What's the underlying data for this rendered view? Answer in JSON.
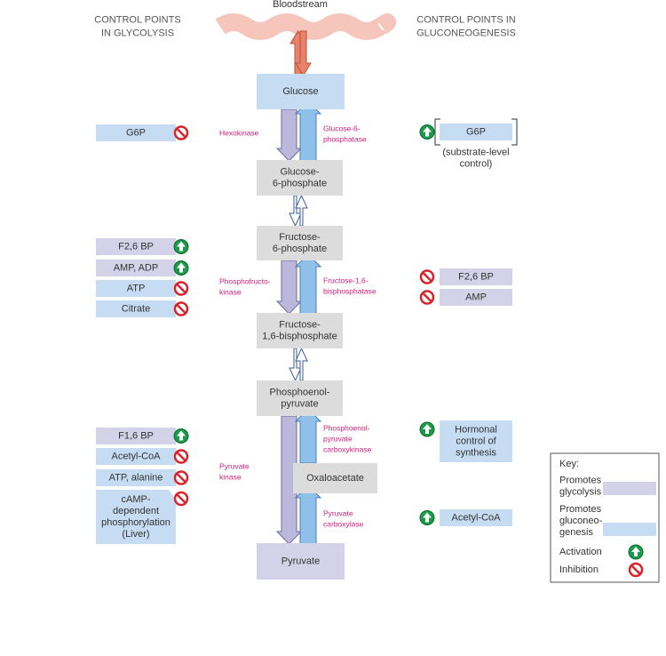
{
  "header": {
    "bloodstream": "Bloodstream",
    "glycolysis_title": [
      "CONTROL POINTS",
      "IN GLYCOLYSIS"
    ],
    "gluconeogenesis_title": [
      "CONTROL POINTS IN",
      "GLUCONEOGENESIS"
    ]
  },
  "metabolites": [
    [
      "Glucose"
    ],
    [
      "Glucose-",
      "6-phosphate"
    ],
    [
      "Fructose-",
      "6-phosphate"
    ],
    [
      "Fructose-",
      "1,6-bisphosphate"
    ],
    [
      "Phosphoenol-",
      "pyruvate"
    ],
    [
      "Oxaloacetate"
    ],
    [
      "Pyruvate"
    ]
  ],
  "glycolysis_enzymes": [
    [
      "Hexokinase"
    ],
    [
      "Phosphofructo-",
      "kinase"
    ],
    [
      "Pyruvate",
      "kinase"
    ]
  ],
  "gluconeogenesis_enzymes": [
    [
      "Glucose-6-",
      "phosphatase"
    ],
    [
      "Fructose-1,6-",
      "bisphosphatase"
    ],
    [
      "Phosphoenol-",
      "pyruvate",
      "carboxykinase"
    ],
    [
      "Pyruvate",
      "carboxylase"
    ]
  ],
  "glycolysis_controls": [
    {
      "label": [
        "G6P"
      ],
      "effect": "inhibition"
    },
    {
      "label": [
        "F2,6 BP"
      ],
      "effect": "activation"
    },
    {
      "label": [
        "AMP, ADP"
      ],
      "effect": "activation"
    },
    {
      "label": [
        "ATP"
      ],
      "effect": "inhibition"
    },
    {
      "label": [
        "Citrate"
      ],
      "effect": "inhibition"
    },
    {
      "label": [
        "F1,6 BP"
      ],
      "effect": "activation"
    },
    {
      "label": [
        "Acetyl-CoA"
      ],
      "effect": "inhibition"
    },
    {
      "label": [
        "ATP, alanine"
      ],
      "effect": "inhibition"
    },
    {
      "label": [
        "cAMP-",
        "dependent",
        "phosphorylation",
        "(Liver)"
      ],
      "effect": "inhibition"
    }
  ],
  "gluconeogenesis_controls": [
    {
      "label": [
        "G6P"
      ],
      "effect": "activation",
      "note": [
        "(substrate-level",
        "control)"
      ]
    },
    {
      "label": [
        "F2,6 BP"
      ],
      "effect": "inhibition"
    },
    {
      "label": [
        "AMP"
      ],
      "effect": "inhibition"
    },
    {
      "label": [
        "Hormonal",
        "control of",
        "synthesis"
      ],
      "effect": "activation"
    },
    {
      "label": [
        "Acetyl-CoA"
      ],
      "effect": "activation"
    }
  ],
  "key": {
    "title": "Key:",
    "items": [
      {
        "label": [
          "Promotes",
          "glycolysis"
        ],
        "swatch": "#d4d2e8"
      },
      {
        "label": [
          "Promotes",
          "gluconeo-",
          "genesis"
        ],
        "swatch": "#c5dcf2"
      },
      {
        "label": [
          "Activation"
        ],
        "icon": "activation"
      },
      {
        "label": [
          "Inhibition"
        ],
        "icon": "inhibition"
      }
    ]
  }
}
